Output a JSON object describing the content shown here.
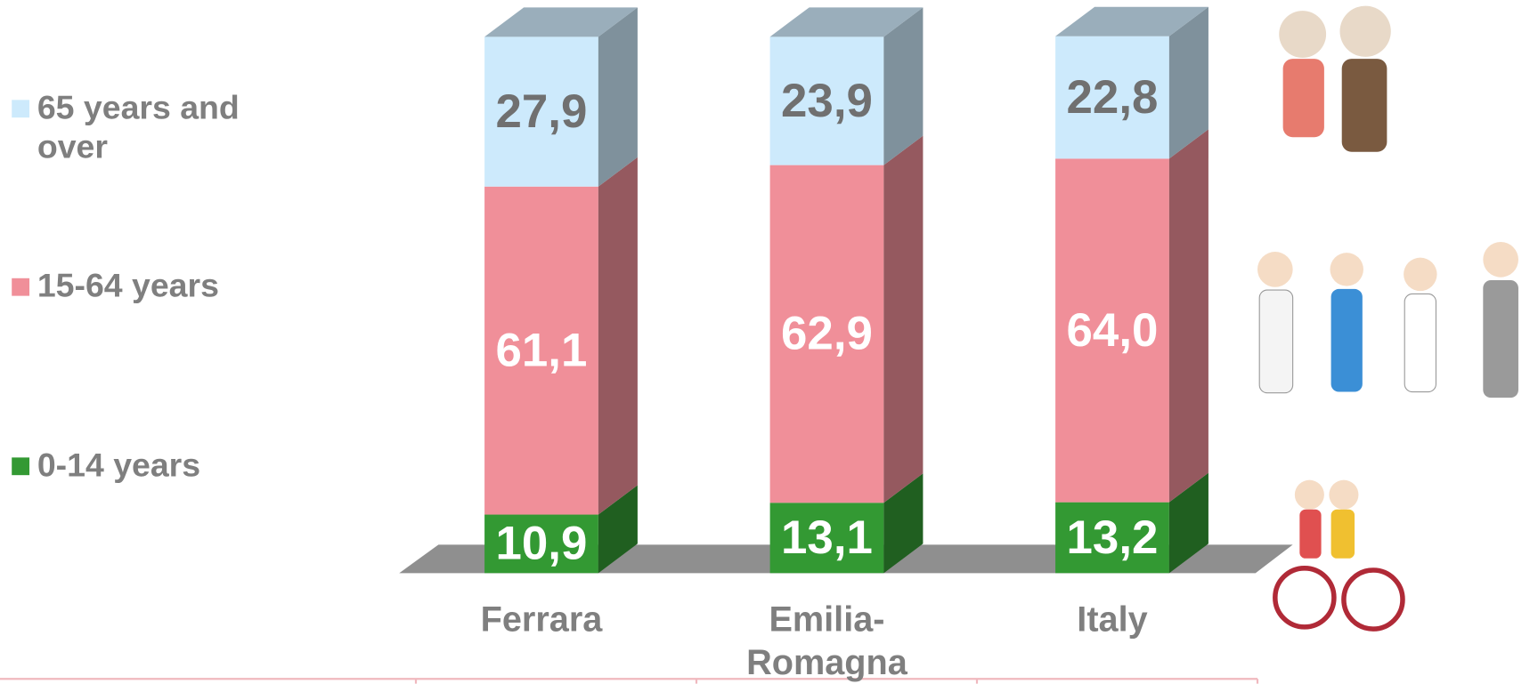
{
  "chart_data": {
    "type": "stacked-bar-3d",
    "categories": [
      "Ferrara",
      "Emilia-Romagna",
      "Italy"
    ],
    "series": [
      {
        "name": "0-14 years",
        "color": "#339933",
        "values": [
          10.9,
          13.1,
          13.2
        ],
        "value_labels": [
          "10,9",
          "13,1",
          "13,2"
        ]
      },
      {
        "name": "15-64 years",
        "color": "#f08f99",
        "values": [
          61.1,
          62.9,
          64.0
        ],
        "value_labels": [
          "61,1",
          "62,9",
          "64,0"
        ]
      },
      {
        "name": "65 years and over",
        "color": "#cdeafc",
        "values": [
          27.9,
          23.9,
          22.8
        ],
        "value_labels": [
          "27,9",
          "23,9",
          "22,8"
        ]
      }
    ]
  }
}
